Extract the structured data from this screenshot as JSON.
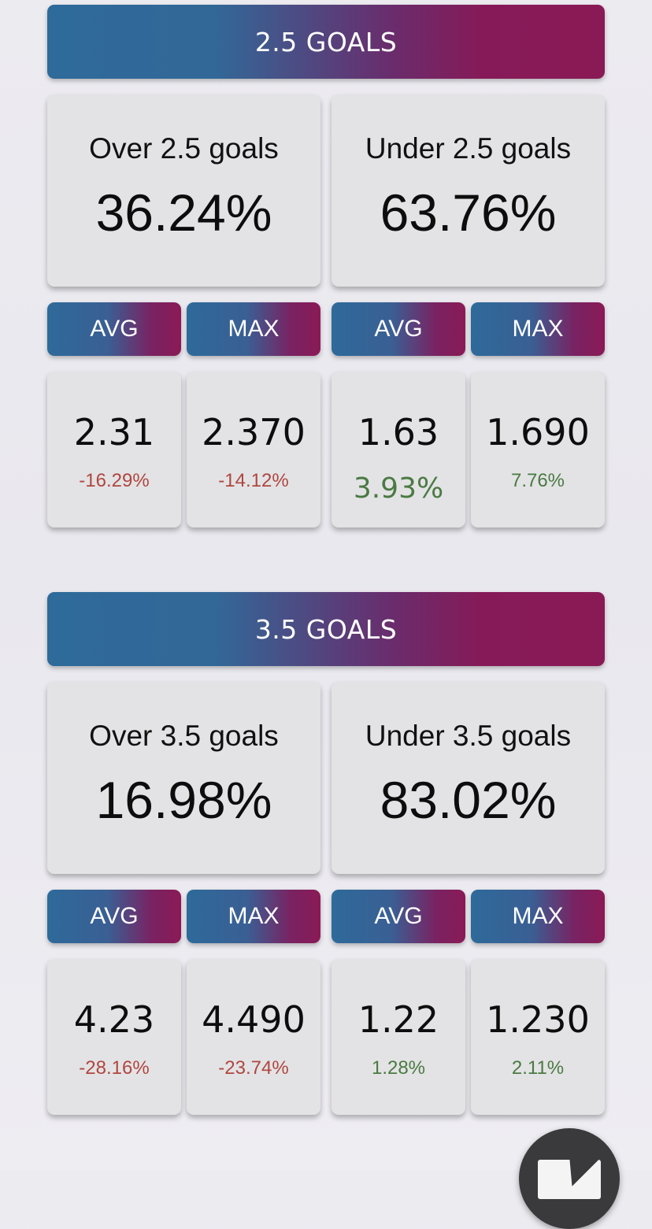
{
  "sections": [
    {
      "title": "2.5 GOALS",
      "over": {
        "label": "Over 2.5 goals",
        "pct": "36.24%"
      },
      "under": {
        "label": "Under 2.5 goals",
        "pct": "63.76%"
      },
      "stats": [
        {
          "header": "AVG",
          "value": "2.31",
          "change": "-16.29%"
        },
        {
          "header": "MAX",
          "value": "2.370",
          "change": "-14.12%"
        },
        {
          "header": "AVG",
          "value": "1.63",
          "change": "3.93%"
        },
        {
          "header": "MAX",
          "value": "1.690",
          "change": "7.76%"
        }
      ]
    },
    {
      "title": "3.5 GOALS",
      "over": {
        "label": "Over 3.5 goals",
        "pct": "16.98%"
      },
      "under": {
        "label": "Under 3.5 goals",
        "pct": "83.02%"
      },
      "stats": [
        {
          "header": "AVG",
          "value": "4.23",
          "change": "-28.16%"
        },
        {
          "header": "MAX",
          "value": "4.490",
          "change": "-23.74%"
        },
        {
          "header": "AVG",
          "value": "1.22",
          "change": "1.28%"
        },
        {
          "header": "MAX",
          "value": "1.230",
          "change": "2.11%"
        }
      ]
    }
  ],
  "colors": {
    "negative": "#b0463f",
    "positive": "#4a7a42",
    "gradient_start": "#2e6a9a",
    "gradient_end": "#8a1a56"
  },
  "fab": {
    "icon": "mail-icon"
  }
}
